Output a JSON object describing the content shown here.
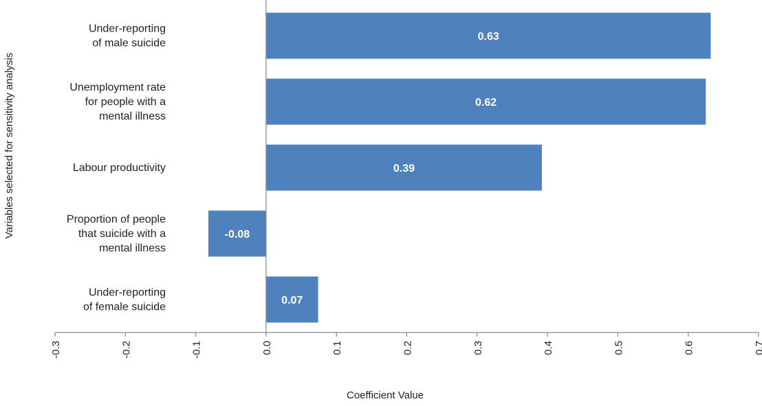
{
  "chart_data": {
    "type": "bar",
    "orientation": "horizontal",
    "categories": [
      [
        "Under-reporting",
        "of male suicide"
      ],
      [
        "Unemployment rate",
        "for people with a",
        "mental illness"
      ],
      [
        "Labour productivity"
      ],
      [
        "Proportion of people",
        "that suicide with a",
        "mental illness"
      ],
      [
        "Under-reporting",
        "of female suicide"
      ]
    ],
    "values": [
      0.632,
      0.625,
      0.392,
      -0.082,
      0.074
    ],
    "data_labels": [
      "0.63",
      "0.62",
      "0.39",
      "-0.08",
      "0.07"
    ],
    "xlabel": "Coefficient Value",
    "ylabel": "Variables selected for sensitivity analysis",
    "xlim": [
      -0.3,
      0.7
    ],
    "xticks": [
      "-0.3",
      "-0.2",
      "-0.1",
      "0.0",
      "0.1",
      "0.2",
      "0.3",
      "0.4",
      "0.5",
      "0.6",
      "0.7"
    ],
    "grid": false,
    "legend": "none",
    "colors": {
      "bar": "#4f81bd",
      "bar_label": "#ffffff",
      "axis": "#868686",
      "text": "#222222"
    }
  }
}
